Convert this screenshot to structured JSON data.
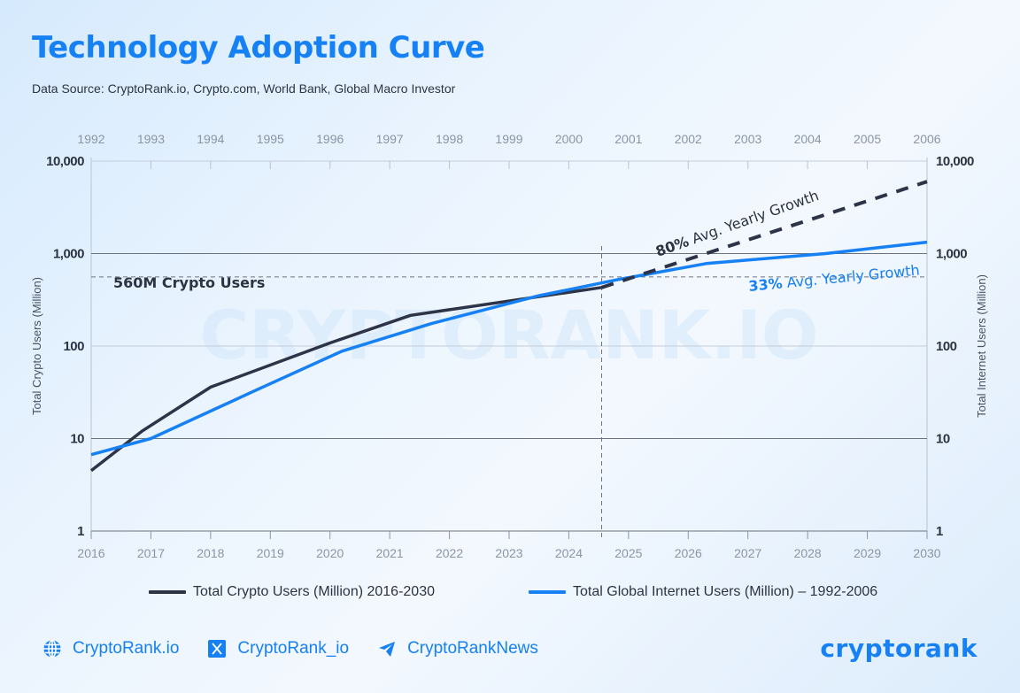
{
  "header": {
    "title": "Technology Adoption Curve",
    "subtitle": "Data Source: CryptoRank.io, Crypto.com, World Bank, Global Macro Investor"
  },
  "colors": {
    "crypto": "#2d3447",
    "internet": "#1680f5",
    "accent": "#1680f5"
  },
  "chart_data": {
    "type": "line",
    "title": "Technology Adoption Curve",
    "yscale": "log",
    "ylim": [
      1,
      10000
    ],
    "ylabel_left": "Total Crypto Users (Million)",
    "ylabel_right": "Total Internet Users (Million)",
    "yticks": [
      {
        "value": 10000,
        "label": "10,000"
      },
      {
        "value": 1000,
        "label": "1,000"
      },
      {
        "value": 100,
        "label": "100"
      },
      {
        "value": 10,
        "label": "10"
      },
      {
        "value": 1,
        "label": "1"
      }
    ],
    "x_bottom": {
      "range": [
        2016,
        2030
      ],
      "ticks": [
        "2016",
        "2017",
        "2018",
        "2019",
        "2020",
        "2021",
        "2022",
        "2023",
        "2024",
        "2025",
        "2026",
        "2027",
        "2028",
        "2029",
        "2030"
      ]
    },
    "x_top": {
      "range": [
        1992,
        2006
      ],
      "ticks": [
        "1992",
        "1993",
        "1994",
        "1995",
        "1996",
        "1997",
        "1998",
        "1999",
        "2000",
        "2001",
        "2002",
        "2003",
        "2004",
        "2005",
        "2006"
      ]
    },
    "grid": true,
    "series": [
      {
        "name": "Total Crypto Users (Million) 2016-2030",
        "axis": "bottom",
        "style": "solid",
        "points": [
          [
            2016,
            4.5
          ],
          [
            2016.85,
            12
          ],
          [
            2018,
            36
          ],
          [
            2020,
            108
          ],
          [
            2021.35,
            215
          ],
          [
            2024.55,
            430
          ]
        ]
      },
      {
        "name": "Total Crypto Users projection",
        "axis": "bottom",
        "style": "dashed",
        "points": [
          [
            2024.55,
            430
          ],
          [
            2030,
            6000
          ]
        ]
      },
      {
        "name": "Total Global Internet Users (Million) – 1992-2006",
        "axis": "top",
        "style": "solid",
        "points": [
          [
            1992,
            6.7
          ],
          [
            1993,
            10
          ],
          [
            1994.7,
            32
          ],
          [
            1996.2,
            88
          ],
          [
            1997.7,
            175
          ],
          [
            1999.5,
            350
          ],
          [
            2000.8,
            520
          ],
          [
            2002.3,
            780
          ],
          [
            2004.3,
            1000
          ],
          [
            2006,
            1330
          ]
        ]
      }
    ],
    "reference_lines": {
      "horizontal": {
        "value": 560,
        "label": "560M Crypto Users"
      },
      "vertical": {
        "x": 2024.55,
        "axis": "bottom"
      }
    },
    "annotations": [
      {
        "bold": "80%",
        "text": " Avg. Yearly Growth",
        "series": "crypto"
      },
      {
        "bold": "33%",
        "text": " Avg. Yearly Growth",
        "series": "internet"
      }
    ],
    "watermark": "CRYPTORANK.IO",
    "legend": [
      {
        "label": "Total Crypto Users (Million) 2016-2030",
        "color": "#2d3447"
      },
      {
        "label": "Total Global Internet Users (Million) – 1992-2006",
        "color": "#1680f5"
      }
    ],
    "legend_position": "bottom"
  },
  "footer": {
    "links": [
      {
        "icon": "globe-icon",
        "label": "CryptoRank.io"
      },
      {
        "icon": "x-icon",
        "label": "CryptoRank_io"
      },
      {
        "icon": "telegram-icon",
        "label": "CryptoRankNews"
      }
    ],
    "brand": "cryptorank"
  }
}
